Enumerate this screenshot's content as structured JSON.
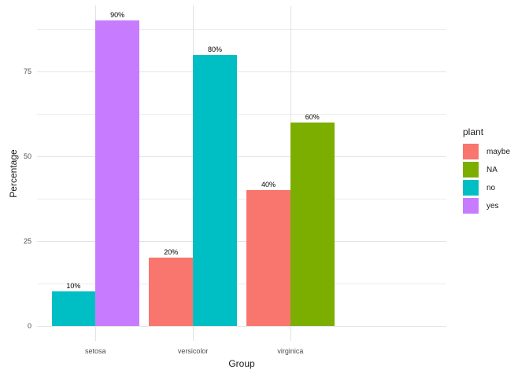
{
  "chart_data": {
    "type": "bar",
    "bar_mode": "dodge",
    "title": "",
    "xlabel": "Group",
    "ylabel": "Percentage",
    "categories": [
      "setosa",
      "versicolor",
      "virginica"
    ],
    "series": [
      {
        "name": "maybe",
        "color": "#F8766D",
        "values": [
          null,
          20,
          40
        ]
      },
      {
        "name": "NA",
        "color": "#7CAE00",
        "values": [
          null,
          null,
          60
        ]
      },
      {
        "name": "no",
        "color": "#00BFC4",
        "values": [
          10,
          80,
          null
        ]
      },
      {
        "name": "yes",
        "color": "#C77CFF",
        "values": [
          90,
          null,
          null
        ]
      }
    ],
    "groups": [
      {
        "category": "setosa",
        "bars": [
          {
            "series": "no",
            "value": 10,
            "label": "10%"
          },
          {
            "series": "yes",
            "value": 90,
            "label": "90%"
          }
        ]
      },
      {
        "category": "versicolor",
        "bars": [
          {
            "series": "maybe",
            "value": 20,
            "label": "20%"
          },
          {
            "series": "no",
            "value": 80,
            "label": "80%"
          }
        ]
      },
      {
        "category": "virginica",
        "bars": [
          {
            "series": "maybe",
            "value": 40,
            "label": "40%"
          },
          {
            "series": "NA",
            "value": 60,
            "label": "60%"
          }
        ]
      }
    ],
    "yticks": [
      0,
      25,
      50,
      75
    ],
    "yminor": [
      12.5,
      37.5,
      62.5,
      87.5
    ],
    "ylim": [
      -4.5,
      94.5
    ],
    "grid": true,
    "legend": {
      "title": "plant",
      "position": "right",
      "items": [
        {
          "label": "maybe",
          "color": "#F8766D"
        },
        {
          "label": "NA",
          "color": "#7CAE00"
        },
        {
          "label": "no",
          "color": "#00BFC4"
        },
        {
          "label": "yes",
          "color": "#C77CFF"
        }
      ]
    },
    "colors": {
      "background": "#FFFFFF",
      "grid_major": "#E3E3E3",
      "grid_minor": "#EDEDED",
      "axis_text": "#4D4D4D",
      "title_text": "#1A1A1A",
      "bar_label_text": "#000000"
    }
  }
}
